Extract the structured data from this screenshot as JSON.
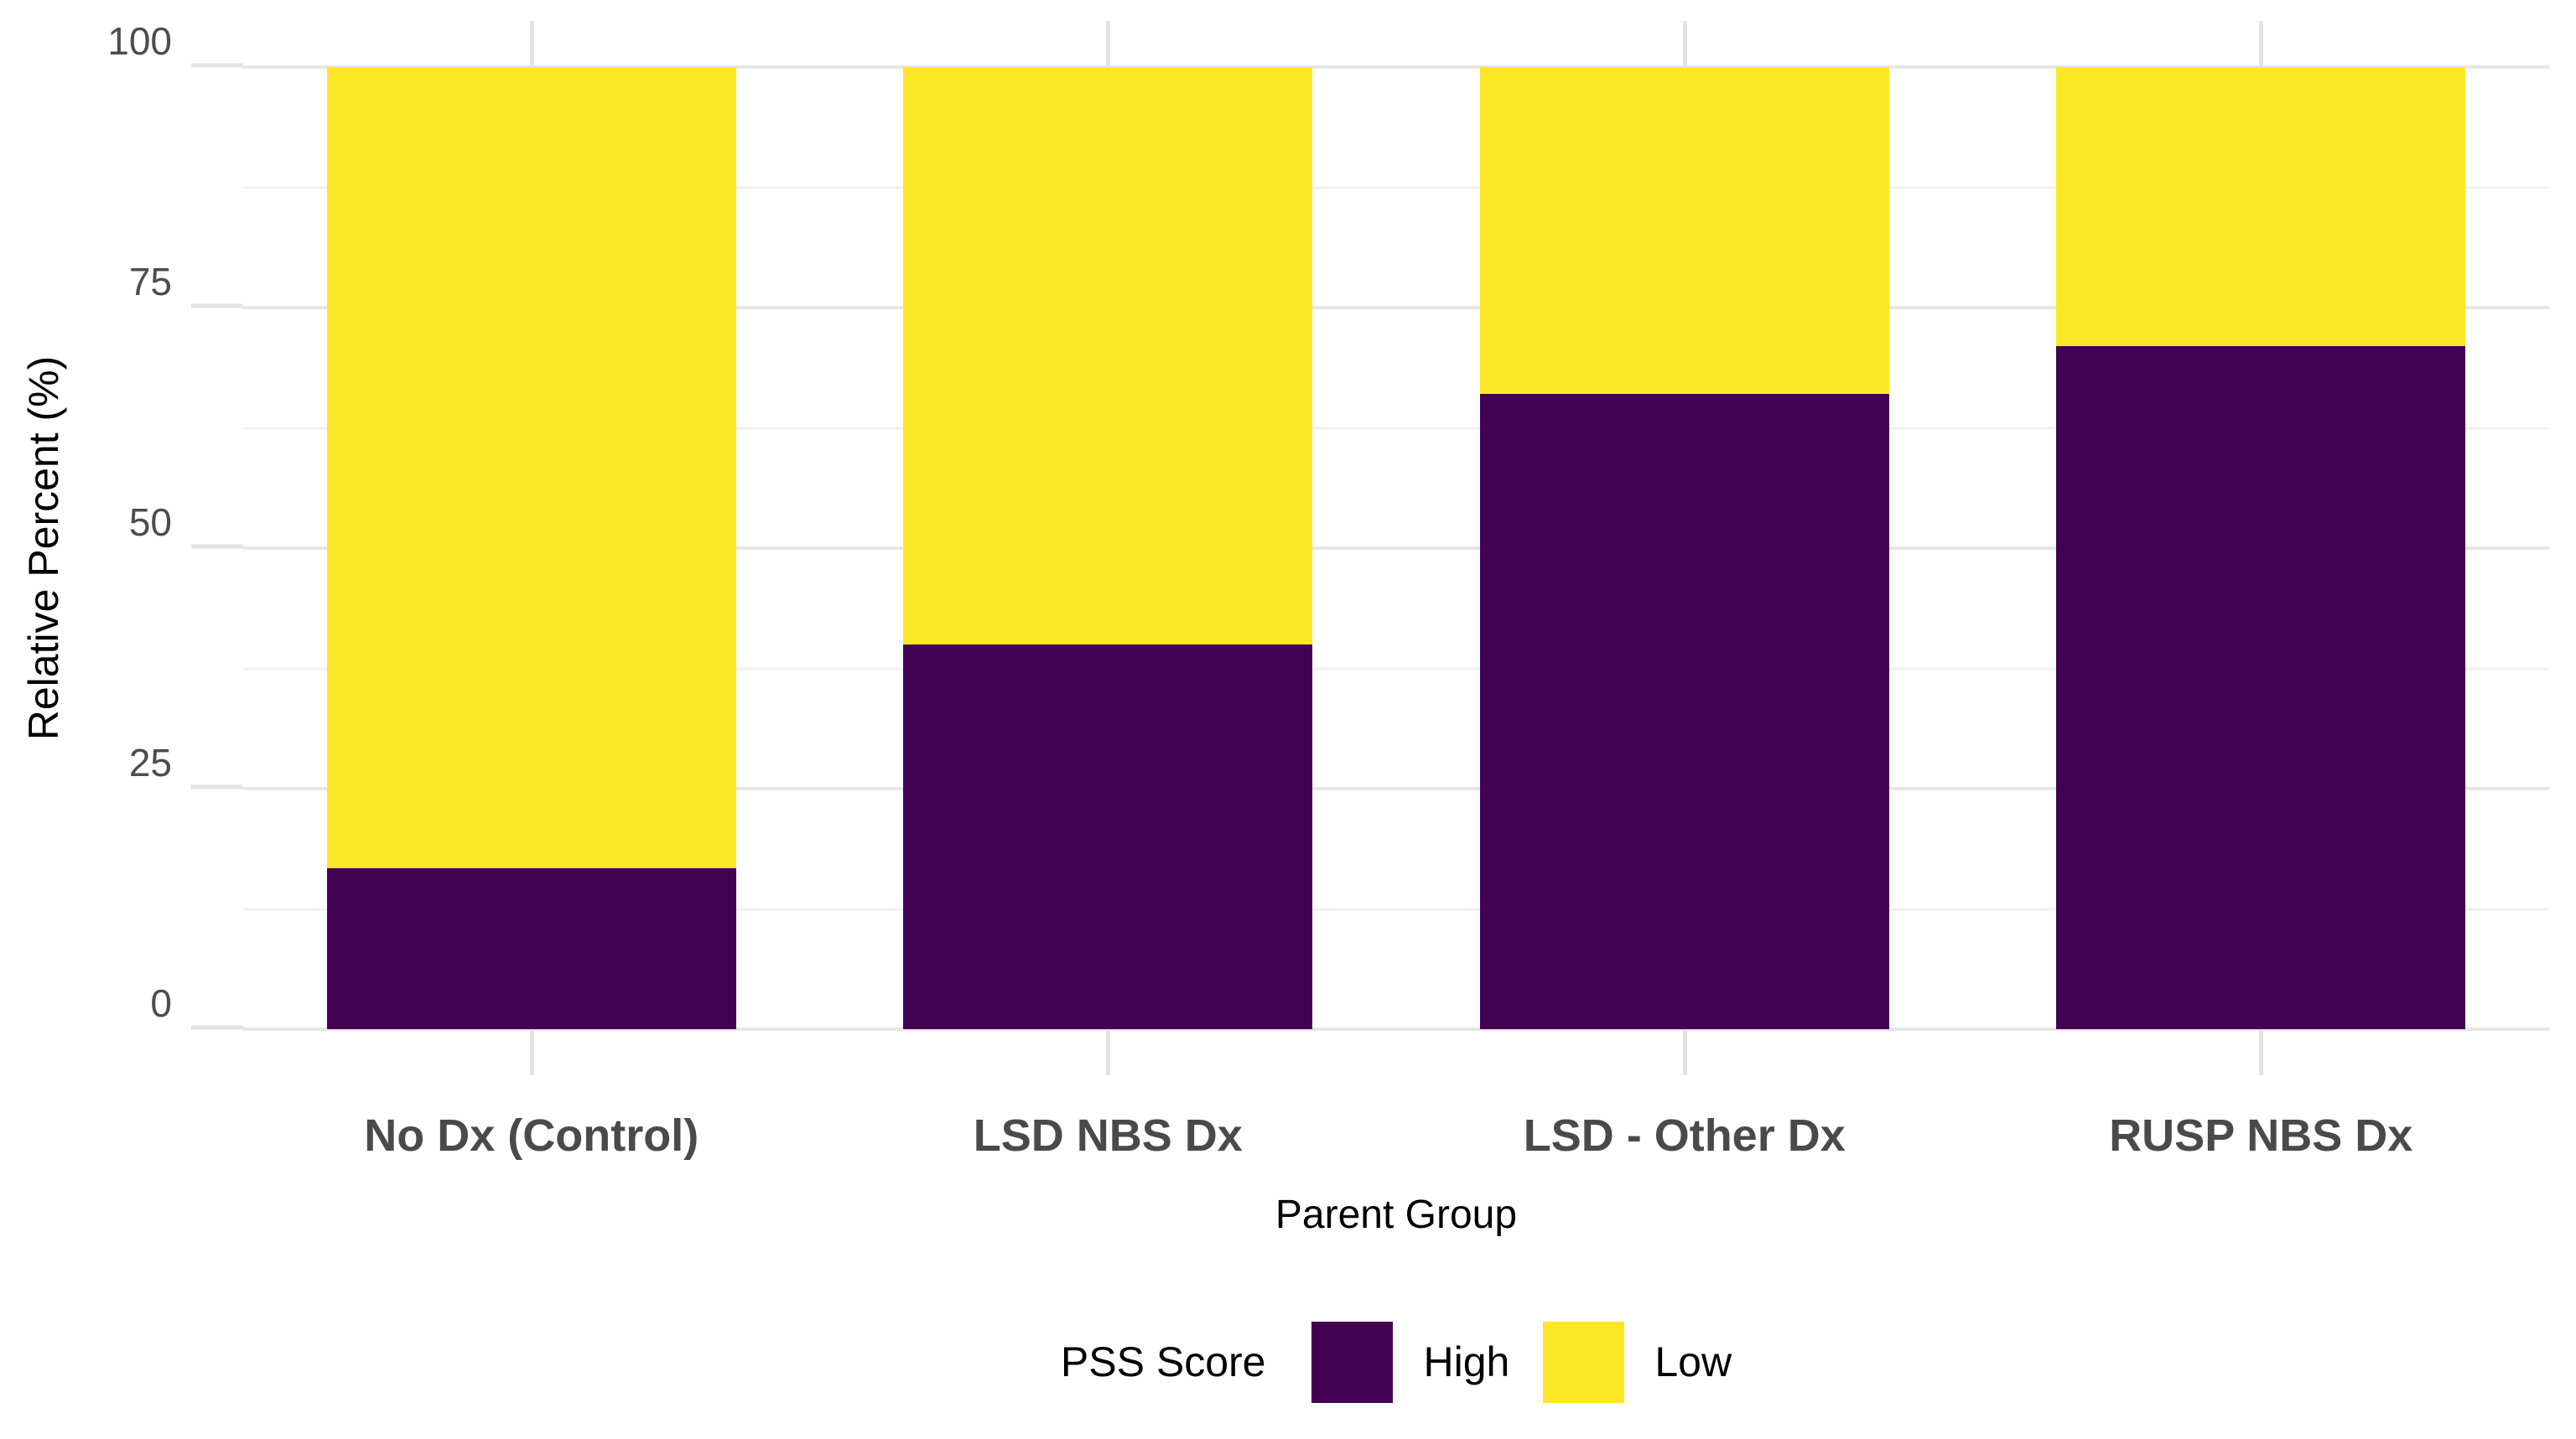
{
  "figure": {
    "y_axis_title": "Relative Percent (%)",
    "x_axis_title": "Parent Group",
    "legend_title": "PSS Score"
  },
  "colors": {
    "high": "#440154",
    "low": "#FDE725",
    "grid_major": "#E6E6E6",
    "grid_minor": "#F0F0F0",
    "axis_tick": "#E3E3E3",
    "y_tick_label": "#4D4D4D",
    "x_category_label": "#4A4A4A"
  },
  "chart_data": {
    "type": "bar",
    "stacked": true,
    "orientation": "vertical",
    "title": "",
    "xlabel": "Parent Group",
    "ylabel": "Relative Percent (%)",
    "categories": [
      "No Dx (Control)",
      "LSD NBS Dx",
      "LSD - Other Dx",
      "RUSP NBS Dx"
    ],
    "series": [
      {
        "name": "High",
        "color": "#440154",
        "values": [
          16.7,
          40,
          66,
          71
        ]
      },
      {
        "name": "Low",
        "color": "#FDE725",
        "values": [
          83.3,
          60,
          34,
          29
        ]
      }
    ],
    "ylim": [
      0,
      100
    ],
    "y_major_ticks": [
      0,
      25,
      50,
      75,
      100
    ],
    "y_minor_ticks": [
      12.5,
      37.5,
      62.5,
      87.5
    ],
    "grid": true,
    "legend_title": "PSS Score",
    "legend_position": "bottom"
  }
}
